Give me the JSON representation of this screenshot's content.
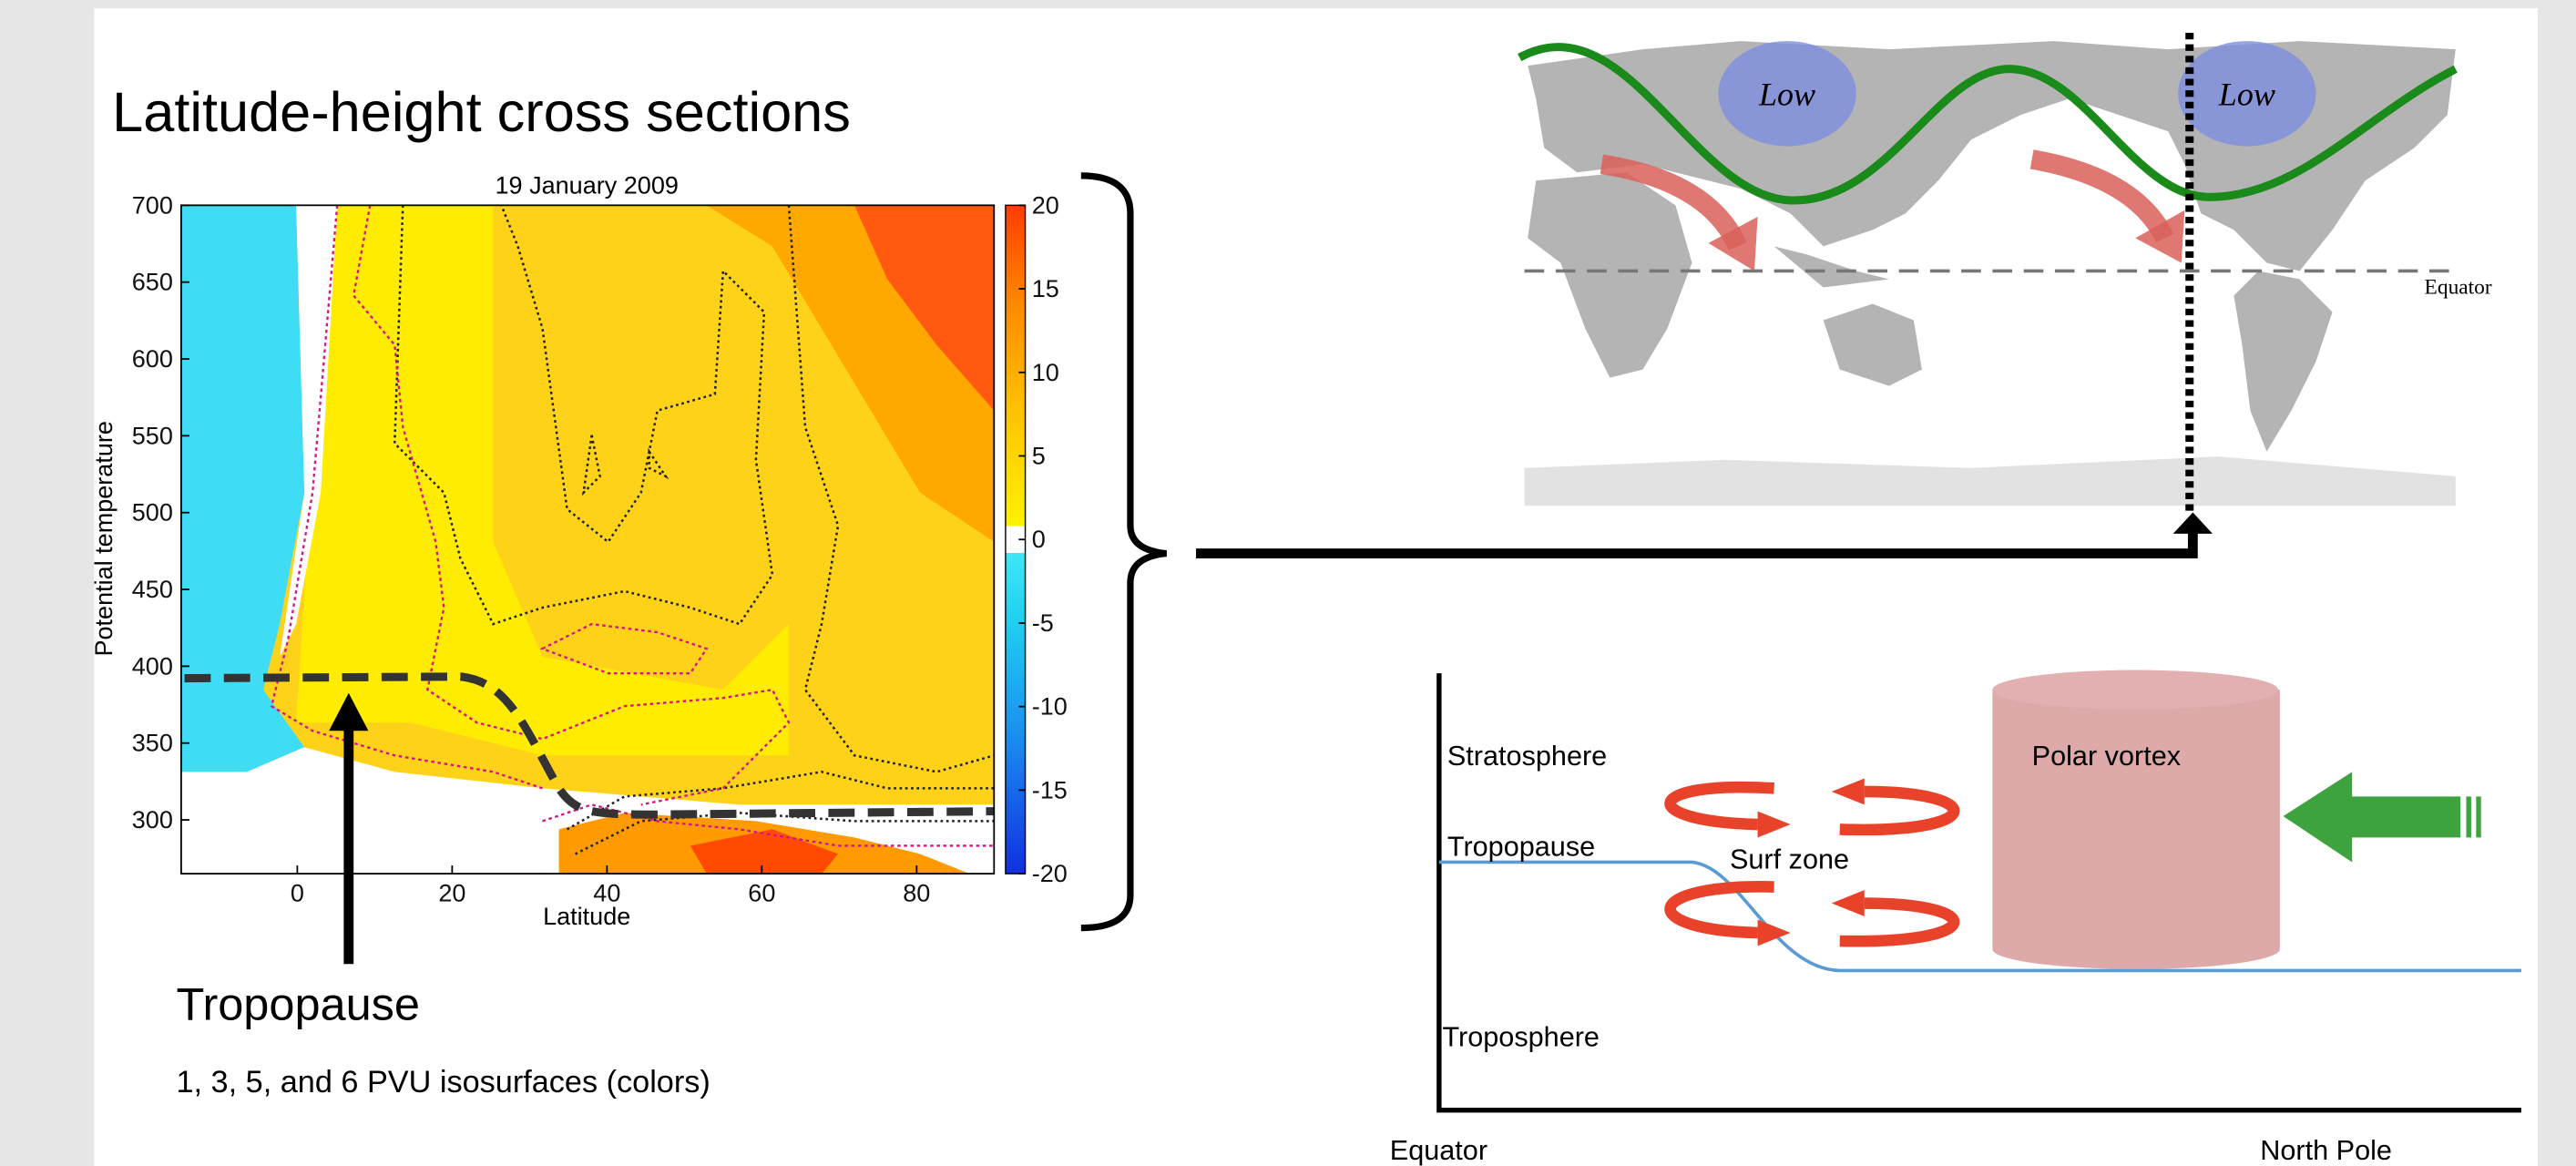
{
  "title": "Latitude-height cross sections",
  "chart_data": {
    "type": "contour",
    "title": "19 January 2009",
    "xlabel": "Latitude",
    "ylabel": "Potential temperature",
    "xlim": [
      -15,
      90
    ],
    "xticks": [
      0,
      20,
      40,
      60,
      80
    ],
    "ylim": [
      265,
      700
    ],
    "yticks": [
      300,
      350,
      400,
      450,
      500,
      550,
      600,
      650,
      700
    ],
    "clim": [
      -20,
      20
    ],
    "cticks": [
      -20,
      -15,
      -10,
      -5,
      0,
      5,
      10,
      15,
      20
    ]
  },
  "annotations": {
    "tropopause": "Tropopause",
    "caption": "1, 3, 5, and 6 PVU isosurfaces (colors)"
  },
  "map": {
    "lows": [
      "Low",
      "Low"
    ],
    "equator": "Equator"
  },
  "diagram": {
    "stratosphere": "Stratosphere",
    "tropopause": "Tropopause",
    "surf_zone": "Surf zone",
    "polar_vortex": "Polar vortex",
    "troposphere": "Troposphere",
    "equator": "Equator",
    "north_pole": "North Pole"
  }
}
